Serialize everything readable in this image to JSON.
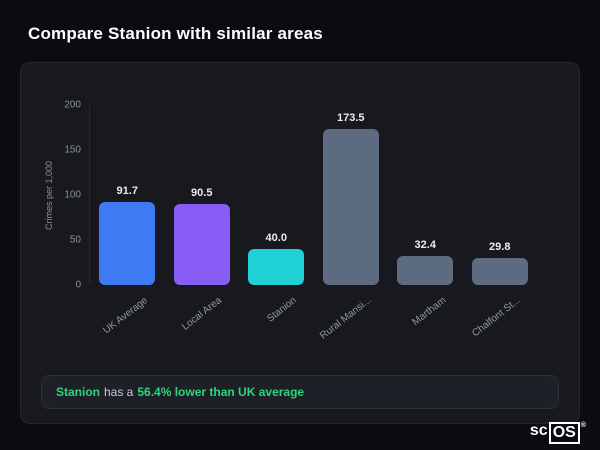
{
  "title": "Compare Stanion with similar areas",
  "chart_data": {
    "type": "bar",
    "categories": [
      "UK Average",
      "Local Area",
      "Stanion",
      "Rural Mansi...",
      "Martham",
      "Chalfont St..."
    ],
    "values": [
      91.7,
      90.5,
      40.0,
      173.5,
      32.4,
      29.8
    ],
    "value_labels": [
      "91.7",
      "90.5",
      "40.0",
      "173.5",
      "32.4",
      "29.8"
    ],
    "colors": [
      "#3d7bf5",
      "#8a5cf6",
      "#1fd0d4",
      "#5d6b80",
      "#5d6b80",
      "#5d6b80"
    ],
    "title": "",
    "xlabel": "",
    "ylabel": "Crimes per 1,000",
    "yticks": [
      0,
      50,
      100,
      150,
      200
    ],
    "ylim": [
      0,
      200
    ],
    "grid": false,
    "legend": false
  },
  "note": {
    "subject": "Stanion",
    "middle": "has a",
    "highlight": "56.4% lower than UK average"
  },
  "logo": {
    "prefix": "sc",
    "boxed": "OS",
    "reg": "®"
  }
}
